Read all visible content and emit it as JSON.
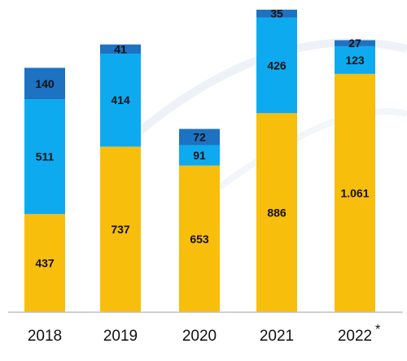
{
  "chart_data": {
    "type": "bar",
    "stacked": true,
    "categories": [
      "2018",
      "2019",
      "2020",
      "2021",
      "2022"
    ],
    "category_marks": [
      "",
      "",
      "",
      "",
      "*"
    ],
    "series": [
      {
        "values": [
          437,
          737,
          653,
          886,
          1061
        ],
        "value_labels": [
          "437",
          "737",
          "653",
          "886",
          "1.061"
        ],
        "color": "#F8BE0C"
      },
      {
        "values": [
          511,
          414,
          91,
          426,
          123
        ],
        "value_labels": [
          "511",
          "414",
          "91",
          "426",
          "123"
        ],
        "color": "#0EAAF0"
      },
      {
        "values": [
          140,
          41,
          72,
          35,
          27
        ],
        "value_labels": [
          "140",
          "41",
          "72",
          "35",
          "27"
        ],
        "color": "#1D72C1"
      }
    ],
    "ylim": [
      0,
      1390
    ],
    "grid": false,
    "legend": "none",
    "xlabel": "",
    "ylabel": "",
    "title": ""
  }
}
